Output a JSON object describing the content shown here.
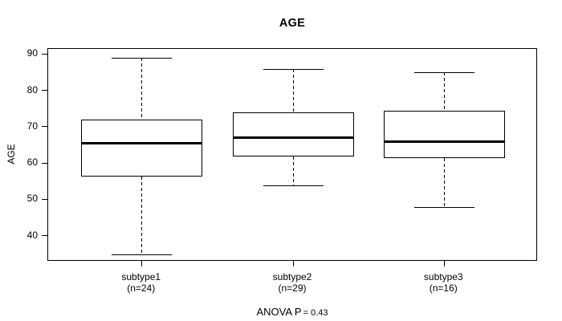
{
  "figure": {
    "title": "AGE",
    "y_axis_label": "AGE",
    "annotation": {
      "prefix": "ANOVA P",
      "value_part": "= 0.43"
    },
    "colors": {
      "line": "#000000",
      "background": "#ffffff",
      "text": "#000000"
    }
  },
  "chart_data": {
    "type": "box",
    "title": "AGE",
    "xlabel": "",
    "ylabel": "AGE",
    "ylim": [
      33,
      91.5
    ],
    "yticks": [
      40,
      50,
      60,
      70,
      80,
      90
    ],
    "grid": false,
    "legend": "none",
    "categories": [
      "subtype1",
      "subtype2",
      "subtype3"
    ],
    "category_sublabels": [
      "(n=24)",
      "(n=29)",
      "(n=16)"
    ],
    "series": [
      {
        "name": "subtype1",
        "n": 24,
        "whisker_low": 35,
        "q1": 56.5,
        "median": 65.5,
        "q3": 72,
        "whisker_high": 89
      },
      {
        "name": "subtype2",
        "n": 29,
        "whisker_low": 54,
        "q1": 62,
        "median": 67,
        "q3": 74,
        "whisker_high": 86
      },
      {
        "name": "subtype3",
        "n": 16,
        "whisker_low": 48,
        "q1": 61.5,
        "median": 66,
        "q3": 74.5,
        "whisker_high": 85
      }
    ],
    "annotation": "ANOVA P = 0.43"
  }
}
